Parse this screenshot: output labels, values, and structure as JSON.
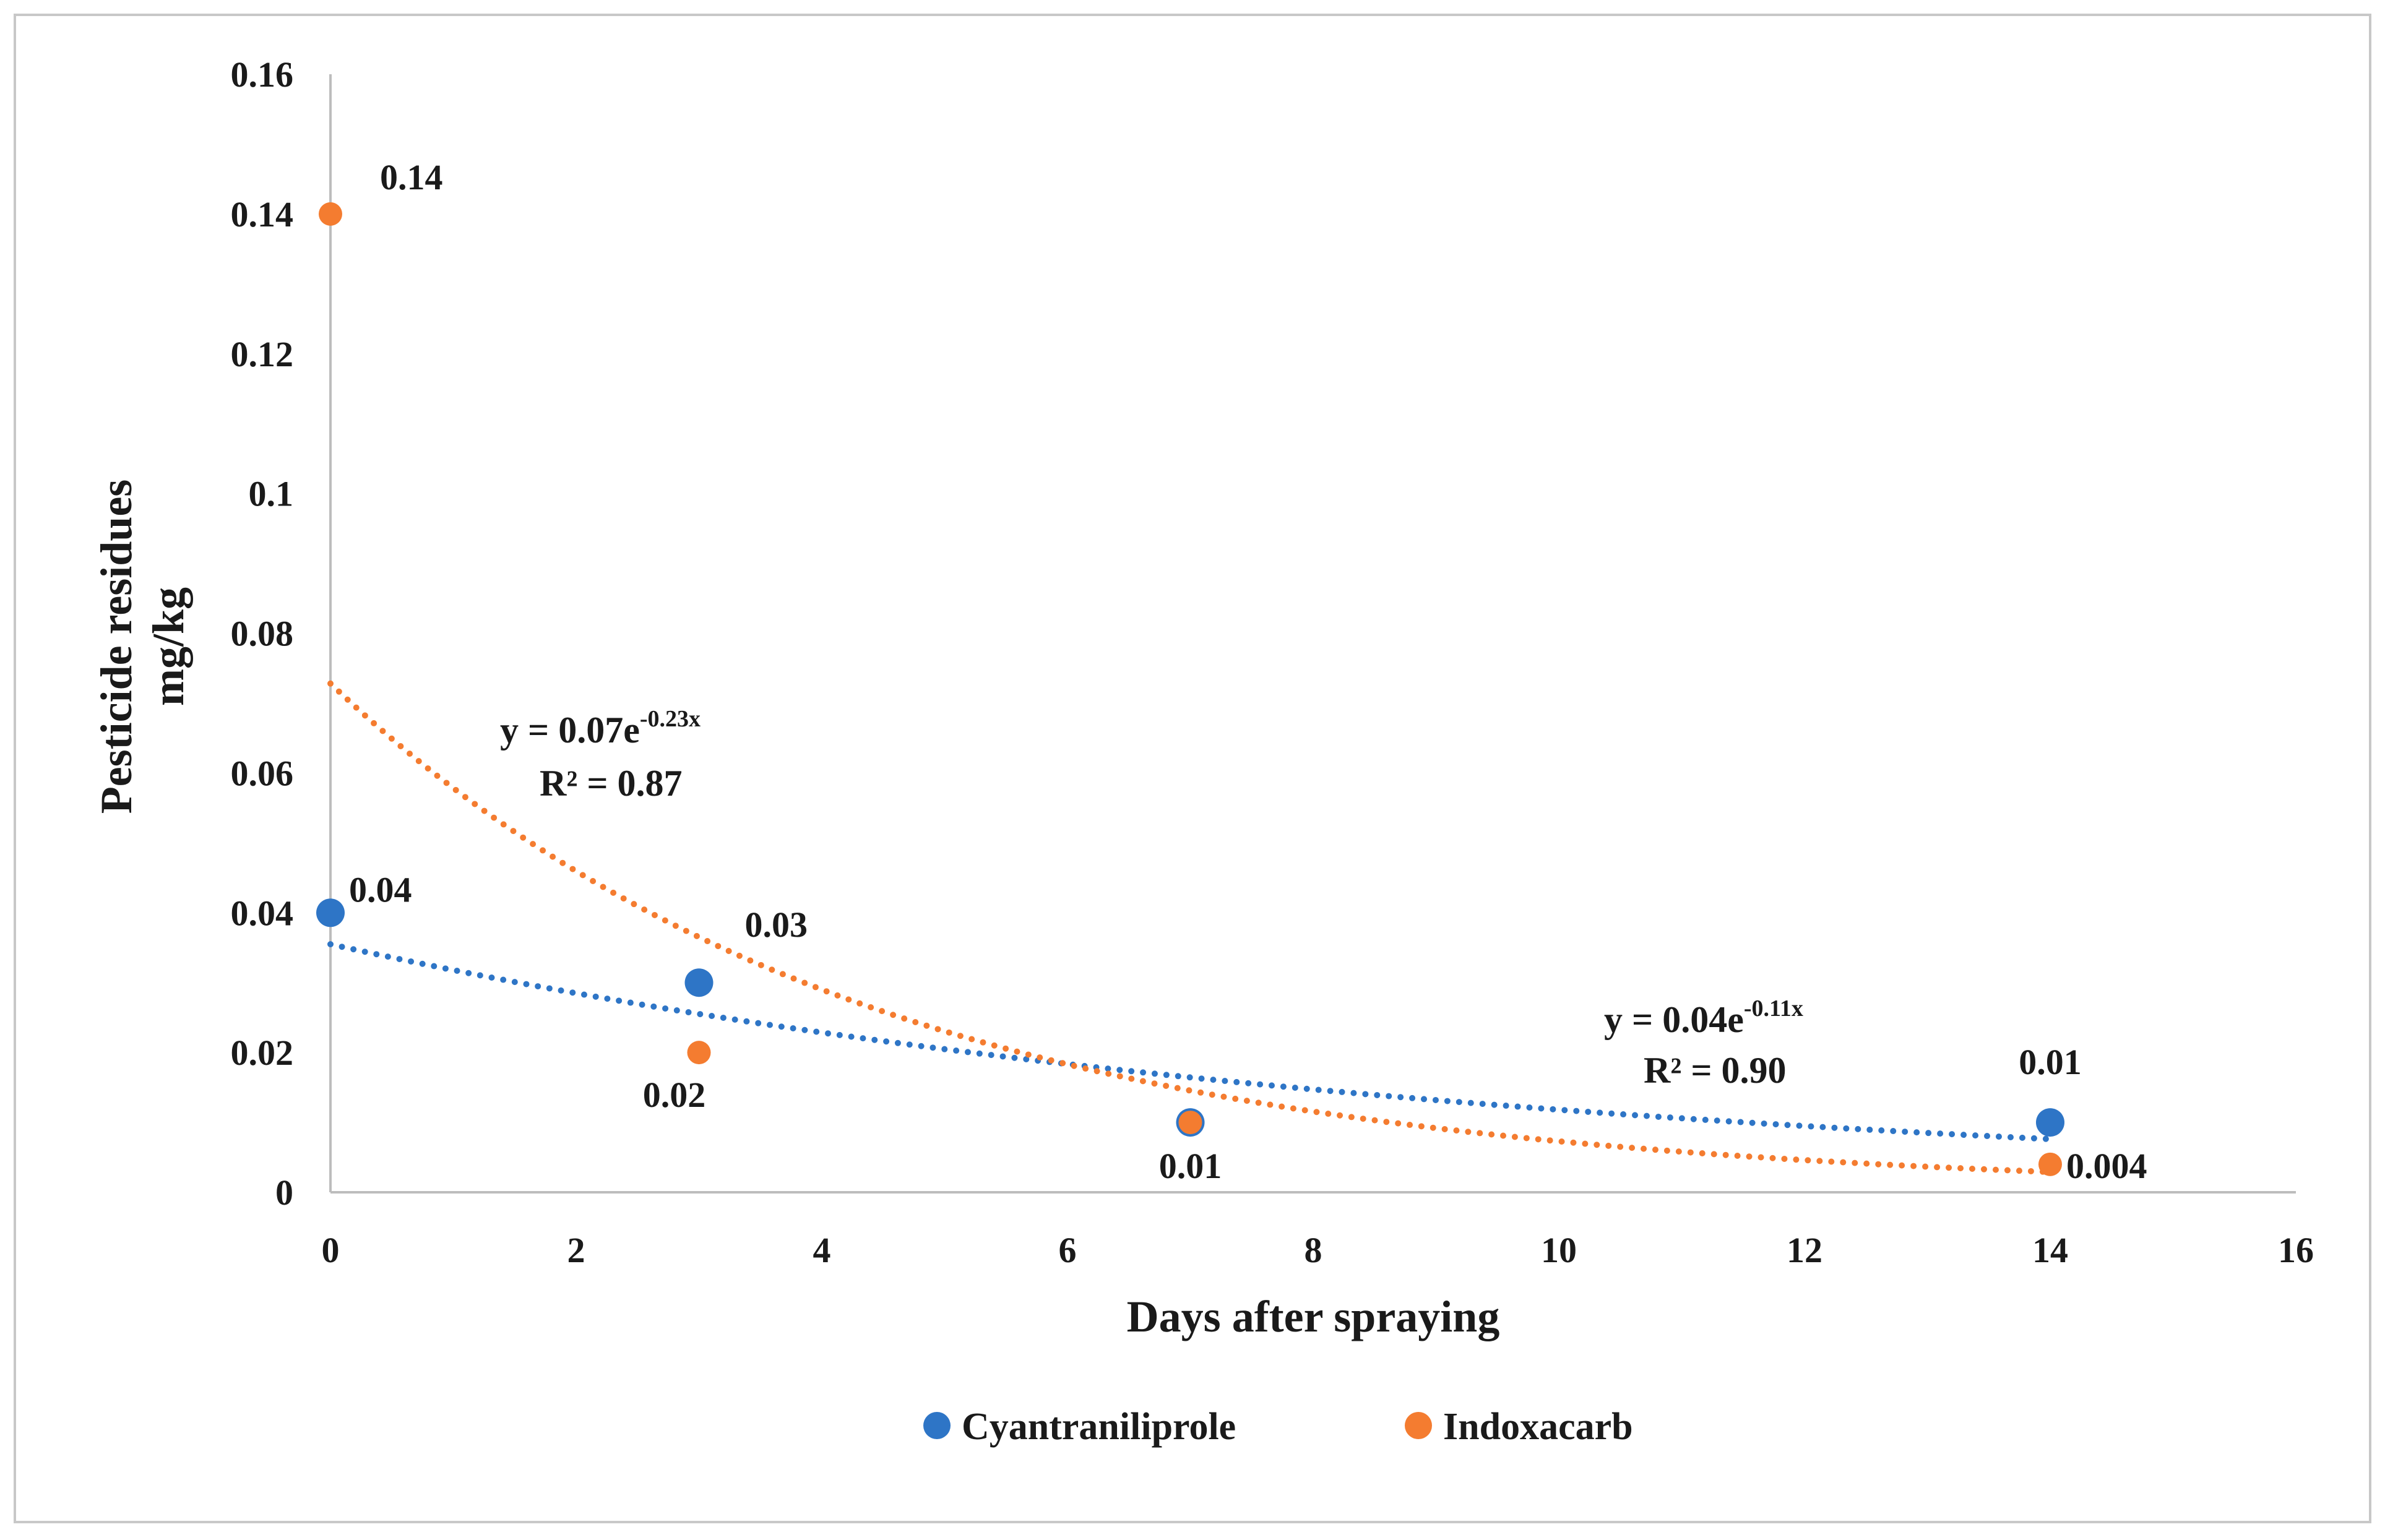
{
  "chart_data": {
    "type": "scatter",
    "title": "",
    "xlabel": "Days after spraying",
    "ylabel": [
      "Pesticide residues",
      "mg/kg"
    ],
    "xlim": [
      0,
      16
    ],
    "ylim": [
      0,
      0.16
    ],
    "x_ticks": [
      "0",
      "2",
      "4",
      "6",
      "8",
      "10",
      "12",
      "14",
      "16"
    ],
    "y_ticks": [
      "0",
      "0.02",
      "0.04",
      "0.06",
      "0.08",
      "0.1",
      "0.12",
      "0.14",
      "0.16"
    ],
    "grid": false,
    "legend_position": "bottom",
    "series": [
      {
        "name": "Cyantraniliprole",
        "color": "#2e75c6",
        "x": [
          0,
          3,
          7,
          14
        ],
        "y": [
          0.04,
          0.03,
          0.01,
          0.01
        ],
        "data_labels": [
          "0.04",
          "0.03",
          "0.01",
          "0.01"
        ],
        "trendline": {
          "type": "exponential",
          "style": "dotted",
          "a": 0.0355,
          "b": -0.11,
          "equation": {
            "base": "y = 0.04e",
            "exponent": "-0.11x"
          },
          "r2": "R² = 0.90"
        }
      },
      {
        "name": "Indoxacarb",
        "color": "#f47c30",
        "x": [
          0,
          3,
          7,
          14
        ],
        "y": [
          0.14,
          0.02,
          0.01,
          0.004
        ],
        "data_labels": [
          "0.14",
          "0.02",
          "",
          "0.004"
        ],
        "trendline": {
          "type": "exponential",
          "style": "dotted",
          "a": 0.0728,
          "b": -0.23,
          "equation": {
            "base": "y = 0.07e",
            "exponent": "-0.23x"
          },
          "r2": "R² = 0.87"
        }
      }
    ]
  }
}
